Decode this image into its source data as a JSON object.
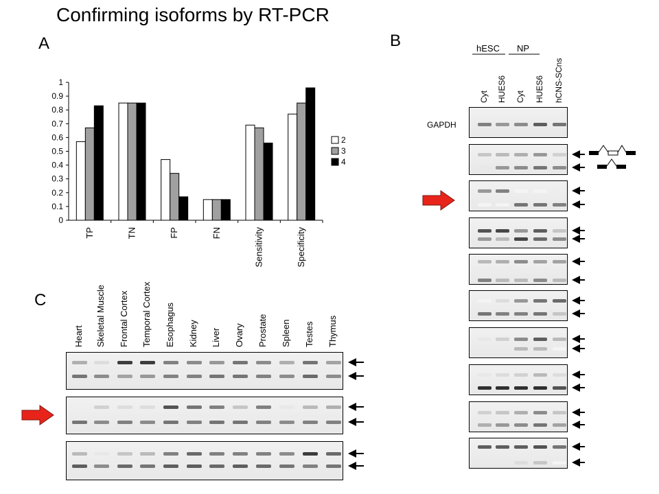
{
  "title": "Confirming isoforms by RT-PCR",
  "panels": {
    "a": "A",
    "b": "B",
    "c": "C"
  },
  "chart_data": {
    "type": "bar",
    "categories": [
      "TP",
      "TN",
      "FP",
      "FN",
      "Sensitivity",
      "Specificity"
    ],
    "series": [
      {
        "name": "2",
        "values": [
          0.57,
          0.85,
          0.44,
          0.15,
          0.69,
          0.77
        ],
        "color": "#ffffff"
      },
      {
        "name": "3",
        "values": [
          0.67,
          0.85,
          0.34,
          0.15,
          0.67,
          0.85
        ],
        "color": "#a0a0a0"
      },
      {
        "name": "4",
        "values": [
          0.83,
          0.85,
          0.17,
          0.15,
          0.56,
          0.96
        ],
        "color": "#000000"
      }
    ],
    "ylim": [
      0,
      1
    ],
    "yticks": [
      "0",
      "0.1",
      "0.2",
      "0.3",
      "0.4",
      "0.5",
      "0.6",
      "0.7",
      "0.8",
      "0.9",
      "1"
    ],
    "grid": false,
    "legend": "right"
  },
  "panel_b": {
    "group_labels": [
      "hESC",
      "NP"
    ],
    "lanes": [
      "Cyt",
      "HUES6",
      "Cyt",
      "HUES6",
      "hCNS-SCns"
    ],
    "row_label": "GAPDH"
  },
  "panel_c": {
    "lanes": [
      "Heart",
      "Skeletal Muscle",
      "Frontal Cortex",
      "Temporal Cortex",
      "Esophagus",
      "Kidney",
      "Liver",
      "Ovary",
      "Prostate",
      "Spleen",
      "Testes",
      "Thymus"
    ]
  },
  "colors": {
    "highlight_arrow": "#e8241a",
    "accent": "#000000"
  }
}
